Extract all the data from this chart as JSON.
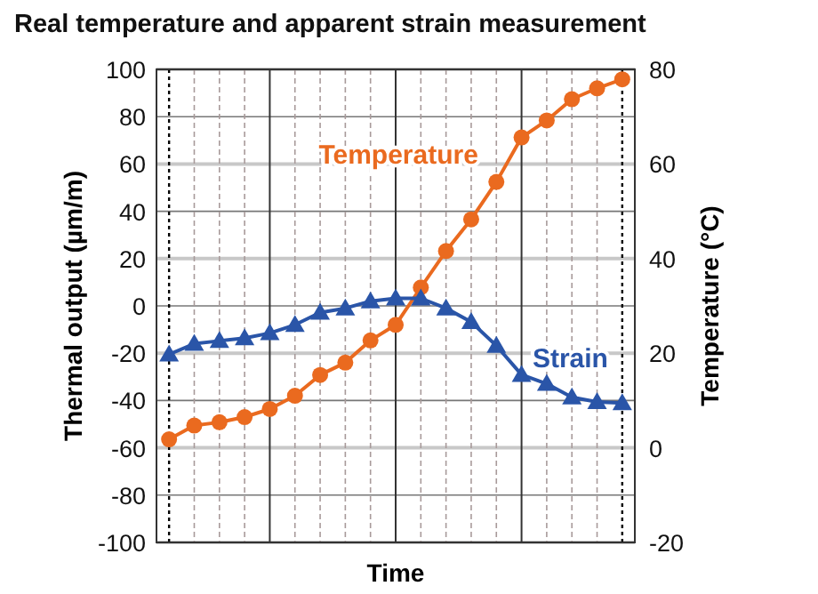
{
  "chart_data": {
    "type": "line",
    "title": "Real temperature and apparent strain measurement",
    "xlabel": "Time",
    "ylabel": "Thermal output (µm/m)",
    "y2label": "Temperature (°C)",
    "categories": [
      null,
      null,
      null,
      null,
      null,
      null,
      null,
      null,
      null,
      null,
      null,
      null,
      null,
      null,
      null,
      null,
      null,
      null,
      null
    ],
    "series": [
      {
        "name": "Temperature",
        "color": "#ea6a1f",
        "axis": "y2",
        "marker": "circle",
        "values": [
          1.8,
          4.7,
          5.4,
          6.5,
          8.2,
          11,
          15.4,
          18,
          22.7,
          26,
          33.9,
          41.6,
          48.3,
          56.2,
          65.6,
          69.2,
          73.7,
          76,
          77.9
        ]
      },
      {
        "name": "Strain",
        "color": "#2a55a8",
        "marker": "triangle",
        "values": [
          -20.5,
          -16,
          -14.8,
          -13.6,
          -11.5,
          -8,
          -2.8,
          -1,
          2,
          3.2,
          3.2,
          -1,
          -6.8,
          -16.8,
          -29.1,
          -32.9,
          -38.6,
          -40.6,
          -41.1
        ]
      }
    ],
    "ylim": [
      -100,
      100
    ],
    "yticks": [
      -100,
      -80,
      -60,
      -40,
      -20,
      0,
      20,
      40,
      60,
      80,
      100
    ],
    "y2lim": [
      -20,
      80
    ],
    "y2ticks": [
      -20,
      0,
      20,
      40,
      60,
      80
    ],
    "grid": true,
    "line_style": "solid"
  }
}
